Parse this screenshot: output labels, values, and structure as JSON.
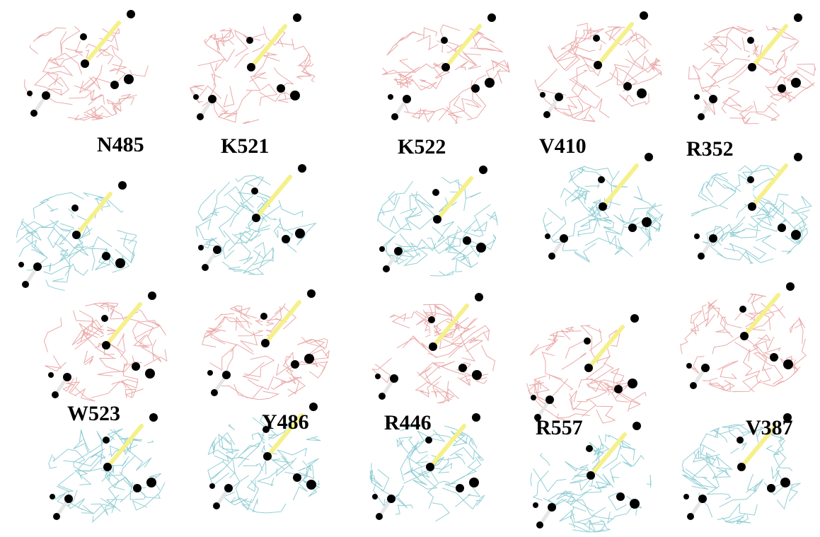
{
  "figure": {
    "background": "#ffffff",
    "colors": {
      "mesh_top": "#e8a0a0",
      "mesh_bottom": "#86c9d0",
      "carbon": "#f2ea22",
      "nitrogen": "#8f8fdc",
      "oxygen": "#e0423a",
      "oxygen_faded": "#ec8a86",
      "hydrogen": "#d6d6d6"
    },
    "panels": [
      {
        "label": "N485",
        "row": 1,
        "col": 1
      },
      {
        "label": "K521",
        "row": 1,
        "col": 2
      },
      {
        "label": "K522",
        "row": 1,
        "col": 3
      },
      {
        "label": "V410",
        "row": 1,
        "col": 4
      },
      {
        "label": "R352",
        "row": 1,
        "col": 5
      },
      {
        "label": "W523",
        "row": 2,
        "col": 1
      },
      {
        "label": "Y486",
        "row": 2,
        "col": 2
      },
      {
        "label": "R446",
        "row": 2,
        "col": 3
      },
      {
        "label": "R557",
        "row": 2,
        "col": 4
      },
      {
        "label": "V387",
        "row": 2,
        "col": 5
      }
    ]
  }
}
